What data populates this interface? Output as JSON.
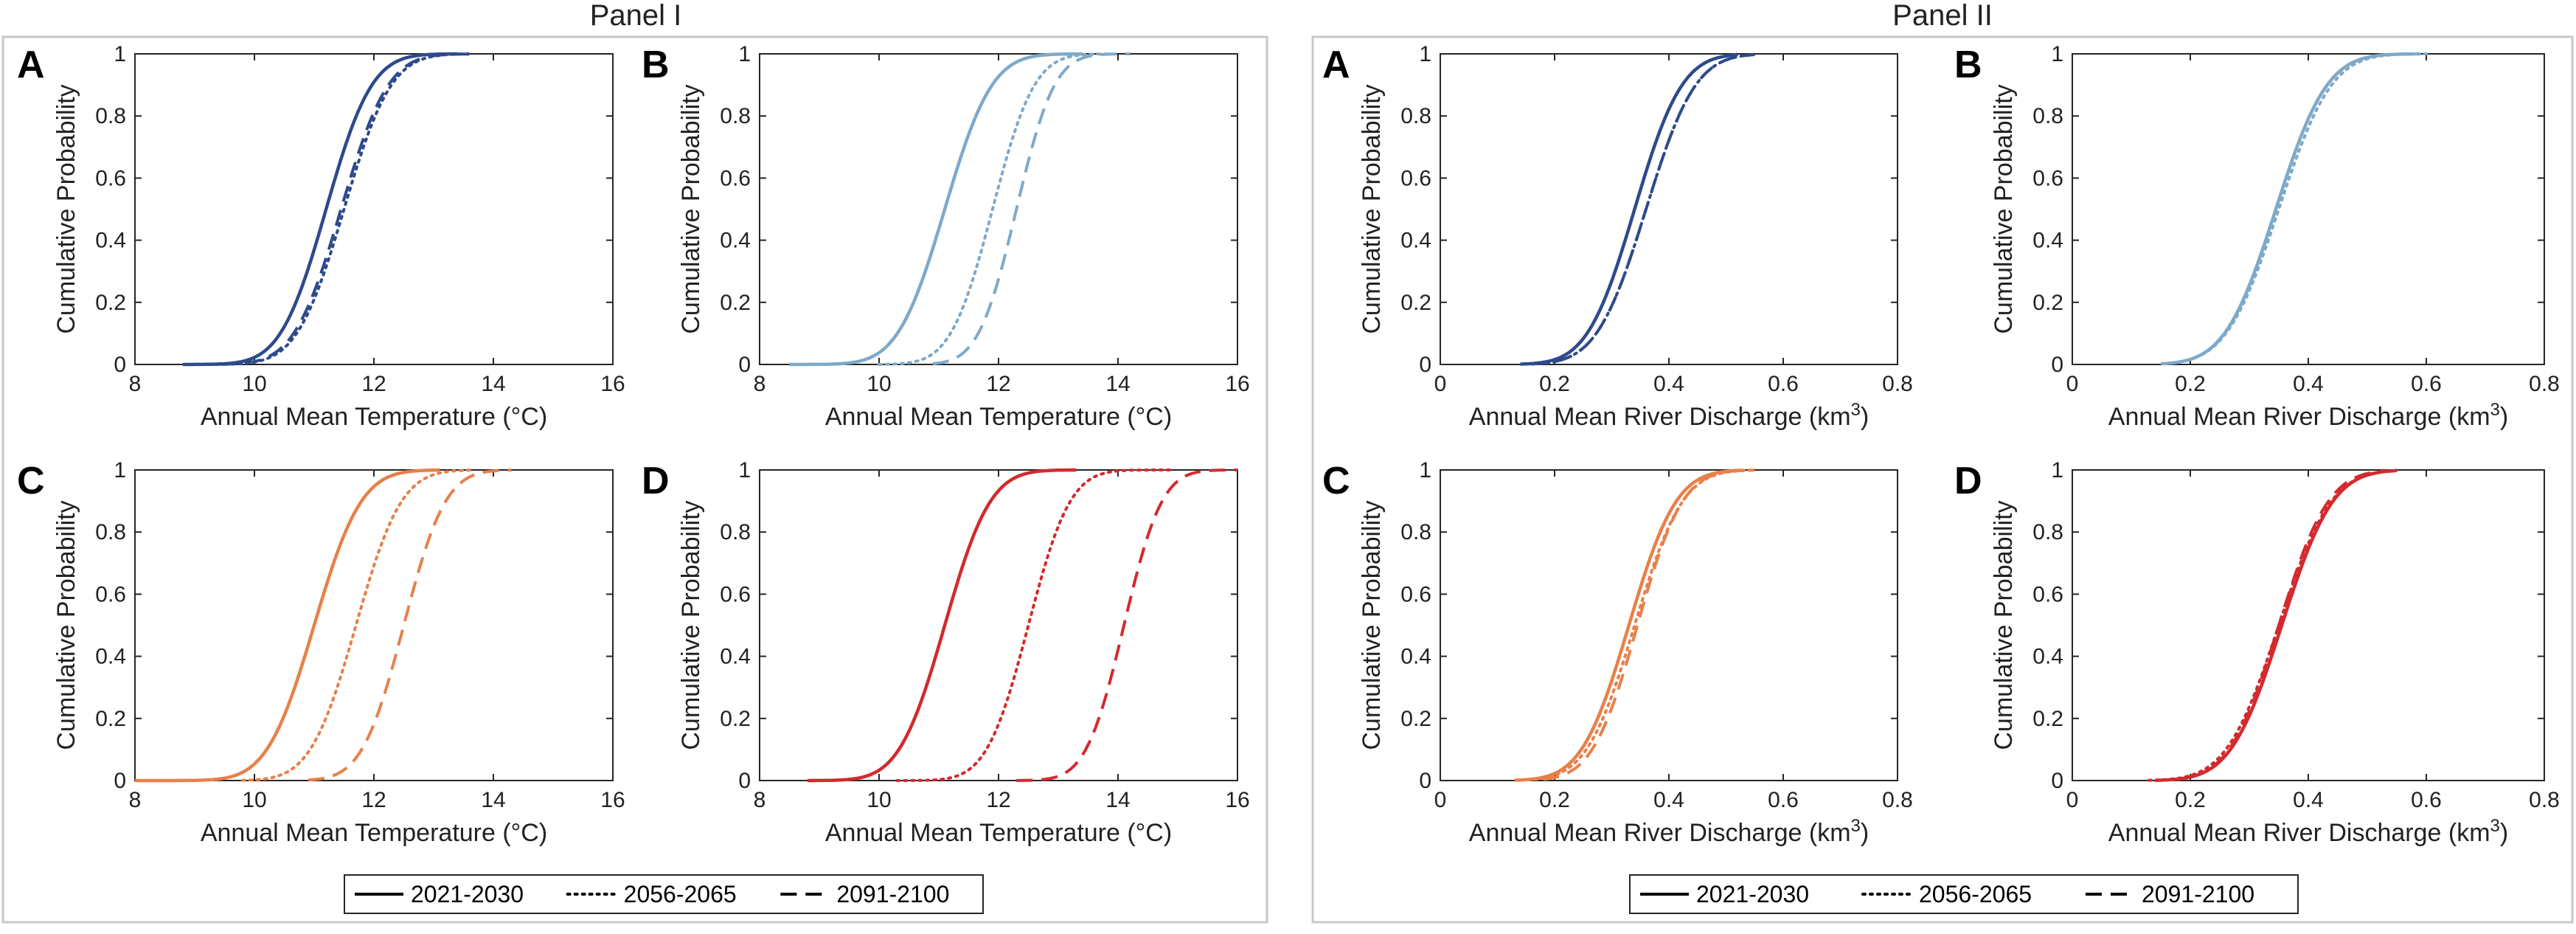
{
  "figure": {
    "panels": [
      {
        "id": "panel-1",
        "title": "Panel I"
      },
      {
        "id": "panel-2",
        "title": "Panel II"
      }
    ],
    "legend": {
      "entries": [
        {
          "label": "2021-2030",
          "style": "solid"
        },
        {
          "label": "2056-2065",
          "style": "dotted"
        },
        {
          "label": "2091-2100",
          "style": "dashed"
        }
      ]
    }
  },
  "chart_data": [
    {
      "type": "line",
      "panel": "Panel I",
      "letter": "A",
      "xlabel": "Annual Mean Temperature (°C)",
      "ylabel": "Cumulative Probability",
      "xlim": [
        8,
        16
      ],
      "ylim": [
        0,
        1
      ],
      "xticks": [
        "8",
        "10",
        "12",
        "14",
        "16"
      ],
      "yticks": [
        "0",
        "0.2",
        "0.4",
        "0.6",
        "0.8",
        "1"
      ],
      "color": "#2e4a8c",
      "series": [
        {
          "name": "2021-2030",
          "style": "solid",
          "mean": 11.2,
          "sd": 0.6,
          "x_min": 8.8,
          "x_max": 13.4
        },
        {
          "name": "2056-2065",
          "style": "dotted",
          "mean": 11.5,
          "sd": 0.62,
          "x_min": 9.0,
          "x_max": 13.6
        },
        {
          "name": "2091-2100",
          "style": "dashed",
          "mean": 11.45,
          "sd": 0.62,
          "x_min": 9.0,
          "x_max": 13.6
        }
      ]
    },
    {
      "type": "line",
      "panel": "Panel I",
      "letter": "B",
      "xlabel": "Annual Mean Temperature (°C)",
      "ylabel": "Cumulative Probability",
      "xlim": [
        8,
        16
      ],
      "ylim": [
        0,
        1
      ],
      "xticks": [
        "8",
        "10",
        "12",
        "14",
        "16"
      ],
      "yticks": [
        "0",
        "0.2",
        "0.4",
        "0.6",
        "0.8",
        "1"
      ],
      "color": "#7fa9c9",
      "series": [
        {
          "name": "2021-2030",
          "style": "solid",
          "mean": 11.1,
          "sd": 0.62,
          "x_min": 8.5,
          "x_max": 13.4
        },
        {
          "name": "2056-2065",
          "style": "dotted",
          "mean": 11.9,
          "sd": 0.55,
          "x_min": 10.0,
          "x_max": 13.9
        },
        {
          "name": "2091-2100",
          "style": "dashed",
          "mean": 12.3,
          "sd": 0.5,
          "x_min": 10.9,
          "x_max": 14.2
        }
      ]
    },
    {
      "type": "line",
      "panel": "Panel I",
      "letter": "C",
      "xlabel": "Annual Mean Temperature (°C)",
      "ylabel": "Cumulative Probability",
      "xlim": [
        8,
        16
      ],
      "ylim": [
        0,
        1
      ],
      "xticks": [
        "8",
        "10",
        "12",
        "14",
        "16"
      ],
      "yticks": [
        "0",
        "0.2",
        "0.4",
        "0.6",
        "0.8",
        "1"
      ],
      "color": "#e8804a",
      "series": [
        {
          "name": "2021-2030",
          "style": "solid",
          "mean": 11.0,
          "sd": 0.62,
          "x_min": 8.0,
          "x_max": 13.1
        },
        {
          "name": "2056-2065",
          "style": "dotted",
          "mean": 11.7,
          "sd": 0.6,
          "x_min": 9.8,
          "x_max": 13.6
        },
        {
          "name": "2091-2100",
          "style": "dashed",
          "mean": 12.5,
          "sd": 0.55,
          "x_min": 10.9,
          "x_max": 14.3
        }
      ]
    },
    {
      "type": "line",
      "panel": "Panel I",
      "letter": "D",
      "xlabel": "Annual Mean Temperature (°C)",
      "ylabel": "Cumulative Probability",
      "xlim": [
        8,
        16
      ],
      "ylim": [
        0,
        1
      ],
      "xticks": [
        "8",
        "10",
        "12",
        "14",
        "16"
      ],
      "yticks": [
        "0",
        "0.2",
        "0.4",
        "0.6",
        "0.8",
        "1"
      ],
      "color": "#d32a2e",
      "series": [
        {
          "name": "2021-2030",
          "style": "solid",
          "mean": 11.1,
          "sd": 0.6,
          "x_min": 8.8,
          "x_max": 13.3
        },
        {
          "name": "2056-2065",
          "style": "dotted",
          "mean": 12.5,
          "sd": 0.55,
          "x_min": 10.3,
          "x_max": 14.9
        },
        {
          "name": "2091-2100",
          "style": "dashed",
          "mean": 14.1,
          "sd": 0.5,
          "x_min": 12.3,
          "x_max": 16.0
        }
      ]
    },
    {
      "type": "line",
      "panel": "Panel II",
      "letter": "A",
      "xlabel": "Annual Mean River Discharge (km3)",
      "ylabel": "Cumulative Probability",
      "xlim": [
        0,
        0.8
      ],
      "ylim": [
        0,
        1
      ],
      "xticks": [
        "0",
        "0.2",
        "0.4",
        "0.6",
        "0.8"
      ],
      "yticks": [
        "0",
        "0.2",
        "0.4",
        "0.6",
        "0.8",
        "1"
      ],
      "color": "#2e4a8c",
      "series": [
        {
          "name": "2021-2030",
          "style": "solid",
          "mean": 0.34,
          "sd": 0.065,
          "x_min": 0.14,
          "x_max": 0.52
        },
        {
          "name": "2056-2065",
          "style": "dotted",
          "mean": 0.36,
          "sd": 0.068,
          "x_min": 0.16,
          "x_max": 0.55
        },
        {
          "name": "2091-2100",
          "style": "dashed",
          "mean": 0.36,
          "sd": 0.068,
          "x_min": 0.16,
          "x_max": 0.55
        }
      ]
    },
    {
      "type": "line",
      "panel": "Panel II",
      "letter": "B",
      "xlabel": "Annual Mean River Discharge (km3)",
      "ylabel": "Cumulative Probability",
      "xlim": [
        0,
        0.8
      ],
      "ylim": [
        0,
        1
      ],
      "xticks": [
        "0",
        "0.2",
        "0.4",
        "0.6",
        "0.8"
      ],
      "yticks": [
        "0",
        "0.2",
        "0.4",
        "0.6",
        "0.8",
        "1"
      ],
      "color": "#7fa9c9",
      "series": [
        {
          "name": "2021-2030",
          "style": "solid",
          "mean": 0.345,
          "sd": 0.068,
          "x_min": 0.15,
          "x_max": 0.58
        },
        {
          "name": "2056-2065",
          "style": "dotted",
          "mean": 0.35,
          "sd": 0.07,
          "x_min": 0.16,
          "x_max": 0.6
        },
        {
          "name": "2091-2100",
          "style": "dashed",
          "mean": 0.345,
          "sd": 0.068,
          "x_min": 0.16,
          "x_max": 0.59
        }
      ]
    },
    {
      "type": "line",
      "panel": "Panel II",
      "letter": "C",
      "xlabel": "Annual Mean River Discharge (km3)",
      "ylabel": "Cumulative Probability",
      "xlim": [
        0,
        0.8
      ],
      "ylim": [
        0,
        1
      ],
      "xticks": [
        "0",
        "0.2",
        "0.4",
        "0.6",
        "0.8"
      ],
      "yticks": [
        "0",
        "0.2",
        "0.4",
        "0.6",
        "0.8",
        "1"
      ],
      "color": "#e8804a",
      "series": [
        {
          "name": "2021-2030",
          "style": "solid",
          "mean": 0.33,
          "sd": 0.065,
          "x_min": 0.13,
          "x_max": 0.53
        },
        {
          "name": "2056-2065",
          "style": "dotted",
          "mean": 0.34,
          "sd": 0.066,
          "x_min": 0.14,
          "x_max": 0.55
        },
        {
          "name": "2091-2100",
          "style": "dashed",
          "mean": 0.345,
          "sd": 0.062,
          "x_min": 0.18,
          "x_max": 0.55
        }
      ]
    },
    {
      "type": "line",
      "panel": "Panel II",
      "letter": "D",
      "xlabel": "Annual Mean River Discharge (km3)",
      "ylabel": "Cumulative Probability",
      "xlim": [
        0,
        0.8
      ],
      "ylim": [
        0,
        1
      ],
      "xticks": [
        "0",
        "0.2",
        "0.4",
        "0.6",
        "0.8"
      ],
      "yticks": [
        "0",
        "0.2",
        "0.4",
        "0.6",
        "0.8",
        "1"
      ],
      "color": "#d32a2e",
      "series": [
        {
          "name": "2021-2030",
          "style": "solid",
          "mean": 0.355,
          "sd": 0.068,
          "x_min": 0.14,
          "x_max": 0.55
        },
        {
          "name": "2056-2065",
          "style": "dotted",
          "mean": 0.35,
          "sd": 0.07,
          "x_min": 0.13,
          "x_max": 0.55
        },
        {
          "name": "2091-2100",
          "style": "dashed",
          "mean": 0.35,
          "sd": 0.066,
          "x_min": 0.16,
          "x_max": 0.53
        }
      ]
    }
  ]
}
